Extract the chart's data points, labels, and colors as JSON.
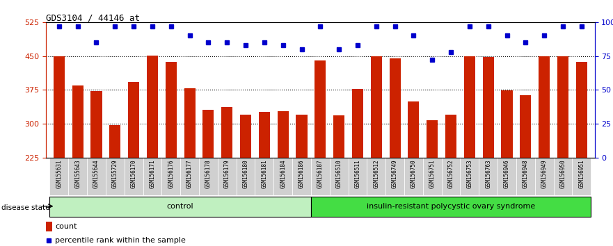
{
  "title": "GDS3104 / 44146_at",
  "samples": [
    "GSM155631",
    "GSM155643",
    "GSM155644",
    "GSM155729",
    "GSM156170",
    "GSM156171",
    "GSM156176",
    "GSM156177",
    "GSM156178",
    "GSM156179",
    "GSM156180",
    "GSM156181",
    "GSM156184",
    "GSM156186",
    "GSM156187",
    "GSM156510",
    "GSM156511",
    "GSM156512",
    "GSM156749",
    "GSM156750",
    "GSM156751",
    "GSM156752",
    "GSM156753",
    "GSM156763",
    "GSM156946",
    "GSM156948",
    "GSM156949",
    "GSM156950",
    "GSM156951"
  ],
  "counts": [
    449,
    384,
    372,
    297,
    392,
    451,
    437,
    379,
    330,
    337,
    320,
    326,
    327,
    320,
    440,
    318,
    377,
    450,
    445,
    349,
    308,
    320,
    450,
    447,
    374,
    363,
    450,
    450,
    437
  ],
  "percentile_ranks_pct": [
    97,
    97,
    85,
    97,
    97,
    97,
    97,
    90,
    85,
    85,
    83,
    85,
    83,
    80,
    97,
    80,
    83,
    97,
    97,
    90,
    72,
    78,
    97,
    97,
    90,
    85,
    90,
    97,
    97
  ],
  "ctrl_count": 14,
  "group_labels": [
    "control",
    "insulin-resistant polycystic ovary syndrome"
  ],
  "bar_color": "#cc2200",
  "dot_color": "#0000cc",
  "ylim_left": [
    225,
    525
  ],
  "ylim_right": [
    0,
    100
  ],
  "yticks_left": [
    225,
    300,
    375,
    450,
    525
  ],
  "yticks_right": [
    0,
    25,
    50,
    75,
    100
  ],
  "grid_values": [
    300,
    375,
    450
  ],
  "ctrl_color": "#c0f0c0",
  "irp_color": "#44dd44",
  "legend_count_label": "count",
  "legend_pct_label": "percentile rank within the sample",
  "disease_state_label": "disease state"
}
